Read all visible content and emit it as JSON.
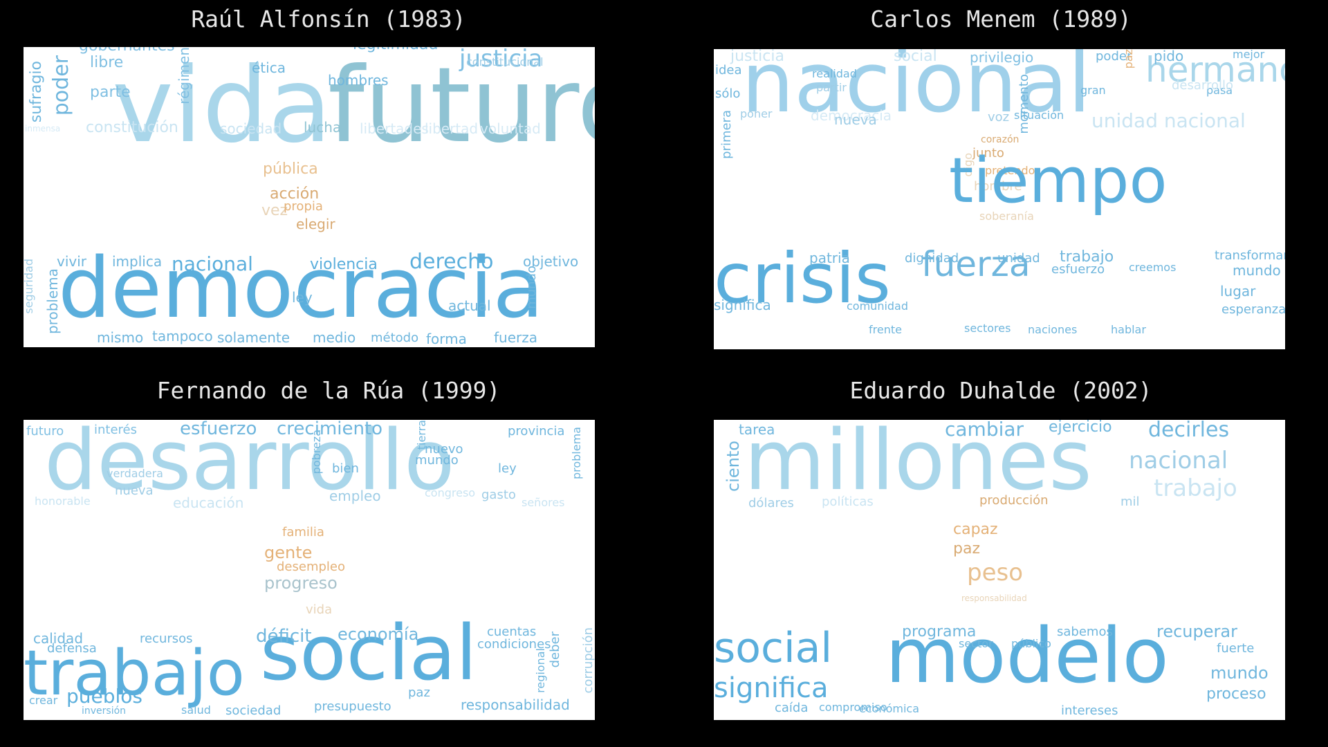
{
  "panels": [
    {
      "title": "Raúl Alfonsín (1983)",
      "words": [
        [
          "vida",
          150,
          "#a9d6ea"
        ],
        [
          "futuro",
          150,
          "#8fc3d3"
        ],
        [
          "democracia",
          120,
          "#5aaedc"
        ],
        [
          "justicia",
          34,
          "#7fbfe2"
        ],
        [
          "gobernantes",
          22,
          "#7fbfe2"
        ],
        [
          "poder",
          30,
          "#6fb6dd"
        ],
        [
          "sufragio",
          22,
          "#6fb6dd"
        ],
        [
          "libre",
          22,
          "#7fbfe2"
        ],
        [
          "parte",
          22,
          "#7fbfe2"
        ],
        [
          "régimen",
          20,
          "#7fbfe2"
        ],
        [
          "ética",
          20,
          "#6fb6dd"
        ],
        [
          "hombres",
          20,
          "#6fb6dd"
        ],
        [
          "legitimidad",
          22,
          "#6fb6dd"
        ],
        [
          "constitucional",
          16,
          "#9fcde6"
        ],
        [
          "constitución",
          22,
          "#c9e4f2"
        ],
        [
          "sociedad",
          20,
          "#c9e4f2"
        ],
        [
          "lucha",
          20,
          "#8fc3d3"
        ],
        [
          "libertades",
          20,
          "#d6eaf5"
        ],
        [
          "libertad",
          20,
          "#d6eaf5"
        ],
        [
          "voluntad",
          20,
          "#d6eaf5"
        ],
        [
          "inmensa",
          12,
          "#d6eaf5"
        ],
        [
          "pública",
          22,
          "#e8c08f"
        ],
        [
          "acción",
          22,
          "#d9aa72"
        ],
        [
          "vez",
          22,
          "#e8d4b8"
        ],
        [
          "propia",
          18,
          "#e4b177"
        ],
        [
          "elegir",
          20,
          "#d9aa72"
        ],
        [
          "vivir",
          20,
          "#6fb6dd"
        ],
        [
          "implica",
          20,
          "#6fb6dd"
        ],
        [
          "nacional",
          28,
          "#5aaedc"
        ],
        [
          "violencia",
          22,
          "#5aaedc"
        ],
        [
          "derecho",
          30,
          "#5aaedc"
        ],
        [
          "objetivo",
          20,
          "#6fb6dd"
        ],
        [
          "ley",
          20,
          "#6fb6dd"
        ],
        [
          "actual",
          20,
          "#6fb6dd"
        ],
        [
          "mundo",
          18,
          "#6fb6dd"
        ],
        [
          "problema",
          20,
          "#6fb6dd"
        ],
        [
          "seguridad",
          16,
          "#9fcde6"
        ],
        [
          "mismo",
          20,
          "#6fb6dd"
        ],
        [
          "tampoco",
          20,
          "#6fb6dd"
        ],
        [
          "solamente",
          20,
          "#6fb6dd"
        ],
        [
          "medio",
          20,
          "#6fb6dd"
        ],
        [
          "método",
          18,
          "#6fb6dd"
        ],
        [
          "forma",
          20,
          "#6fb6dd"
        ],
        [
          "fuerza",
          20,
          "#6fb6dd"
        ]
      ]
    },
    {
      "title": "Carlos Menem (1989)",
      "words": [
        [
          "nacional",
          120,
          "#9fd0ea"
        ],
        [
          "hermano",
          50,
          "#a9d6ea"
        ],
        [
          "unidad nacional",
          28,
          "#c9e4f2"
        ],
        [
          "justicia",
          22,
          "#c9e4f2"
        ],
        [
          "social",
          22,
          "#c9e4f2"
        ],
        [
          "privilegio",
          20,
          "#7fbfe2"
        ],
        [
          "poder",
          18,
          "#6fb6dd"
        ],
        [
          "pido",
          20,
          "#6fb6dd"
        ],
        [
          "mejor",
          16,
          "#6fb6dd"
        ],
        [
          "idea",
          18,
          "#6fb6dd"
        ],
        [
          "sólo",
          18,
          "#6fb6dd"
        ],
        [
          "primera",
          18,
          "#6fb6dd"
        ],
        [
          "realidad",
          16,
          "#6fb6dd"
        ],
        [
          "partir",
          16,
          "#9fcde6"
        ],
        [
          "poner",
          16,
          "#9fcde6"
        ],
        [
          "democracia",
          20,
          "#d6eaf5"
        ],
        [
          "nueva",
          20,
          "#9fcde6"
        ],
        [
          "voz",
          18,
          "#9fcde6"
        ],
        [
          "situación",
          16,
          "#6fb6dd"
        ],
        [
          "momento",
          18,
          "#6fb6dd"
        ],
        [
          "pasa",
          16,
          "#6fb6dd"
        ],
        [
          "desarrollo",
          18,
          "#c9e4f2"
        ],
        [
          "gran",
          16,
          "#6fb6dd"
        ],
        [
          "paz",
          16,
          "#e4b177"
        ],
        [
          "corazón",
          14,
          "#d9aa72"
        ],
        [
          "junto",
          18,
          "#d9aa72"
        ],
        [
          "pretendo",
          16,
          "#e4b177"
        ],
        [
          "hombre",
          18,
          "#e8d4b8"
        ],
        [
          "soberanía",
          16,
          "#e8d4b8"
        ],
        [
          "digo",
          16,
          "#e8d4b8"
        ],
        [
          "tiempo",
          90,
          "#5aaedc"
        ],
        [
          "crisis",
          100,
          "#5aaedc"
        ],
        [
          "fuerza",
          50,
          "#6fb6dd"
        ],
        [
          "significa",
          20,
          "#6fb6dd"
        ],
        [
          "patria",
          20,
          "#6fb6dd"
        ],
        [
          "dignidad",
          18,
          "#6fb6dd"
        ],
        [
          "unidad",
          18,
          "#6fb6dd"
        ],
        [
          "trabajo",
          22,
          "#6fb6dd"
        ],
        [
          "transformar",
          18,
          "#6fb6dd"
        ],
        [
          "esfuerzo",
          18,
          "#6fb6dd"
        ],
        [
          "creemos",
          16,
          "#6fb6dd"
        ],
        [
          "mundo",
          20,
          "#6fb6dd"
        ],
        [
          "lugar",
          20,
          "#6fb6dd"
        ],
        [
          "esperanza",
          18,
          "#6fb6dd"
        ],
        [
          "comunidad",
          16,
          "#6fb6dd"
        ],
        [
          "frente",
          16,
          "#6fb6dd"
        ],
        [
          "sectores",
          16,
          "#6fb6dd"
        ],
        [
          "naciones",
          16,
          "#6fb6dd"
        ],
        [
          "hablar",
          16,
          "#6fb6dd"
        ]
      ]
    },
    {
      "title": "Fernando de la Rúa (1999)",
      "words": [
        [
          "desarrollo",
          120,
          "#a9d6ea"
        ],
        [
          "trabajo",
          90,
          "#5aaedc"
        ],
        [
          "social",
          110,
          "#5aaedc"
        ],
        [
          "futuro",
          18,
          "#7fbfe2"
        ],
        [
          "interés",
          18,
          "#7fbfe2"
        ],
        [
          "esfuerzo",
          26,
          "#6fb6dd"
        ],
        [
          "crecimiento",
          26,
          "#6fb6dd"
        ],
        [
          "provincia",
          18,
          "#6fb6dd"
        ],
        [
          "nuevo",
          18,
          "#6fb6dd"
        ],
        [
          "mundo",
          18,
          "#6fb6dd"
        ],
        [
          "ley",
          18,
          "#6fb6dd"
        ],
        [
          "bien",
          18,
          "#6fb6dd"
        ],
        [
          "verdadera",
          16,
          "#9fcde6"
        ],
        [
          "pobreza",
          16,
          "#6fb6dd"
        ],
        [
          "tierra",
          16,
          "#6fb6dd"
        ],
        [
          "problema",
          16,
          "#6fb6dd"
        ],
        [
          "nueva",
          18,
          "#9fcde6"
        ],
        [
          "educación",
          20,
          "#c9e4f2"
        ],
        [
          "empleo",
          20,
          "#9fcde6"
        ],
        [
          "gasto",
          18,
          "#9fcde6"
        ],
        [
          "honorable",
          16,
          "#c9e4f2"
        ],
        [
          "señores",
          16,
          "#c9e4f2"
        ],
        [
          "congreso",
          16,
          "#c9e4f2"
        ],
        [
          "familia",
          18,
          "#e4b177"
        ],
        [
          "gente",
          24,
          "#e4b177"
        ],
        [
          "desempleo",
          18,
          "#e4b177"
        ],
        [
          "progreso",
          24,
          "#a9c3cc"
        ],
        [
          "vida",
          18,
          "#e8d4b8"
        ],
        [
          "calidad",
          20,
          "#6fb6dd"
        ],
        [
          "recursos",
          18,
          "#6fb6dd"
        ],
        [
          "déficit",
          26,
          "#6fb6dd"
        ],
        [
          "economía",
          24,
          "#6fb6dd"
        ],
        [
          "cuentas",
          18,
          "#6fb6dd"
        ],
        [
          "condiciones",
          18,
          "#6fb6dd"
        ],
        [
          "defensa",
          18,
          "#6fb6dd"
        ],
        [
          "pueblos",
          28,
          "#5aaedc"
        ],
        [
          "crear",
          16,
          "#6fb6dd"
        ],
        [
          "inversión",
          14,
          "#6fb6dd"
        ],
        [
          "salud",
          16,
          "#6fb6dd"
        ],
        [
          "sociedad",
          18,
          "#6fb6dd"
        ],
        [
          "presupuesto",
          18,
          "#6fb6dd"
        ],
        [
          "paz",
          18,
          "#6fb6dd"
        ],
        [
          "responsabilidad",
          20,
          "#6fb6dd"
        ],
        [
          "deber",
          18,
          "#6fb6dd"
        ],
        [
          "corrupción",
          18,
          "#9fcde6"
        ],
        [
          "regional",
          16,
          "#6fb6dd"
        ]
      ]
    },
    {
      "title": "Eduardo Duhalde (2002)",
      "words": [
        [
          "millones",
          120,
          "#a9d6ea"
        ],
        [
          "modelo",
          110,
          "#5aaedc"
        ],
        [
          "social",
          60,
          "#5aaedc"
        ],
        [
          "significa",
          40,
          "#5aaedc"
        ],
        [
          "tarea",
          20,
          "#6fb6dd"
        ],
        [
          "cambiar",
          28,
          "#6fb6dd"
        ],
        [
          "ejercicio",
          22,
          "#6fb6dd"
        ],
        [
          "decirles",
          30,
          "#6fb6dd"
        ],
        [
          "nacional",
          34,
          "#9fcde6"
        ],
        [
          "trabajo",
          34,
          "#c9e4f2"
        ],
        [
          "ciento",
          24,
          "#6fb6dd"
        ],
        [
          "dólares",
          18,
          "#9fcde6"
        ],
        [
          "políticas",
          18,
          "#c9e4f2"
        ],
        [
          "producción",
          18,
          "#d9aa72"
        ],
        [
          "mil",
          18,
          "#9fcde6"
        ],
        [
          "capaz",
          22,
          "#e4b177"
        ],
        [
          "paz",
          22,
          "#d9aa72"
        ],
        [
          "peso",
          34,
          "#e8c08f"
        ],
        [
          "responsabilidad",
          12,
          "#e8d4b8"
        ],
        [
          "programa",
          22,
          "#6fb6dd"
        ],
        [
          "sabemos",
          18,
          "#6fb6dd"
        ],
        [
          "recuperar",
          24,
          "#6fb6dd"
        ],
        [
          "fuerte",
          18,
          "#6fb6dd"
        ],
        [
          "mundo",
          24,
          "#6fb6dd"
        ],
        [
          "proceso",
          22,
          "#6fb6dd"
        ],
        [
          "caída",
          18,
          "#6fb6dd"
        ],
        [
          "compromiso",
          16,
          "#6fb6dd"
        ],
        [
          "económica",
          16,
          "#6fb6dd"
        ],
        [
          "intereses",
          18,
          "#6fb6dd"
        ],
        [
          "sector",
          16,
          "#6fb6dd"
        ],
        [
          "público",
          16,
          "#6fb6dd"
        ]
      ]
    }
  ]
}
